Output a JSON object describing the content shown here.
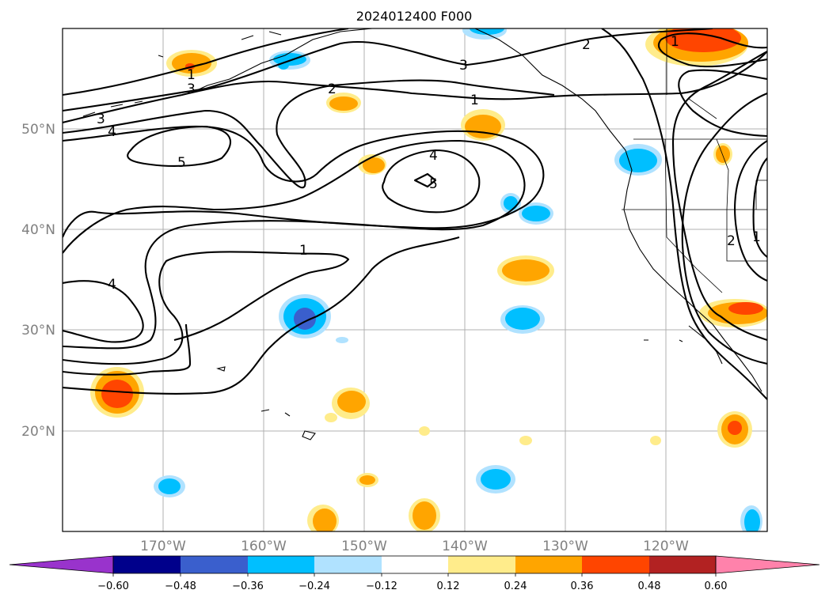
{
  "title": "2024012400 F000",
  "latitude_labels": [
    "50°N",
    "40°N",
    "30°N",
    "20°N"
  ],
  "longitude_labels": [
    "170°W",
    "160°W",
    "150°W",
    "140°W",
    "130°W",
    "120°W"
  ],
  "colorbar": {
    "ticks": [
      "−0.60",
      "−0.48",
      "−0.36",
      "−0.24",
      "−0.12",
      "0.12",
      "0.24",
      "0.36",
      "0.48",
      "0.60"
    ],
    "colors": [
      "#9933cc",
      "#00008b",
      "#3a5fcd",
      "#00bfff",
      "#b0e2ff",
      "#ffffff",
      "#ffec8b",
      "#ffa500",
      "#ff4500",
      "#b22222",
      "#ff82ab"
    ]
  },
  "contour_labels": [
    "1",
    "3",
    "2",
    "1",
    "3",
    "1",
    "2",
    "3",
    "4",
    "5",
    "4",
    "5",
    "1",
    "4",
    "2",
    "1"
  ]
}
